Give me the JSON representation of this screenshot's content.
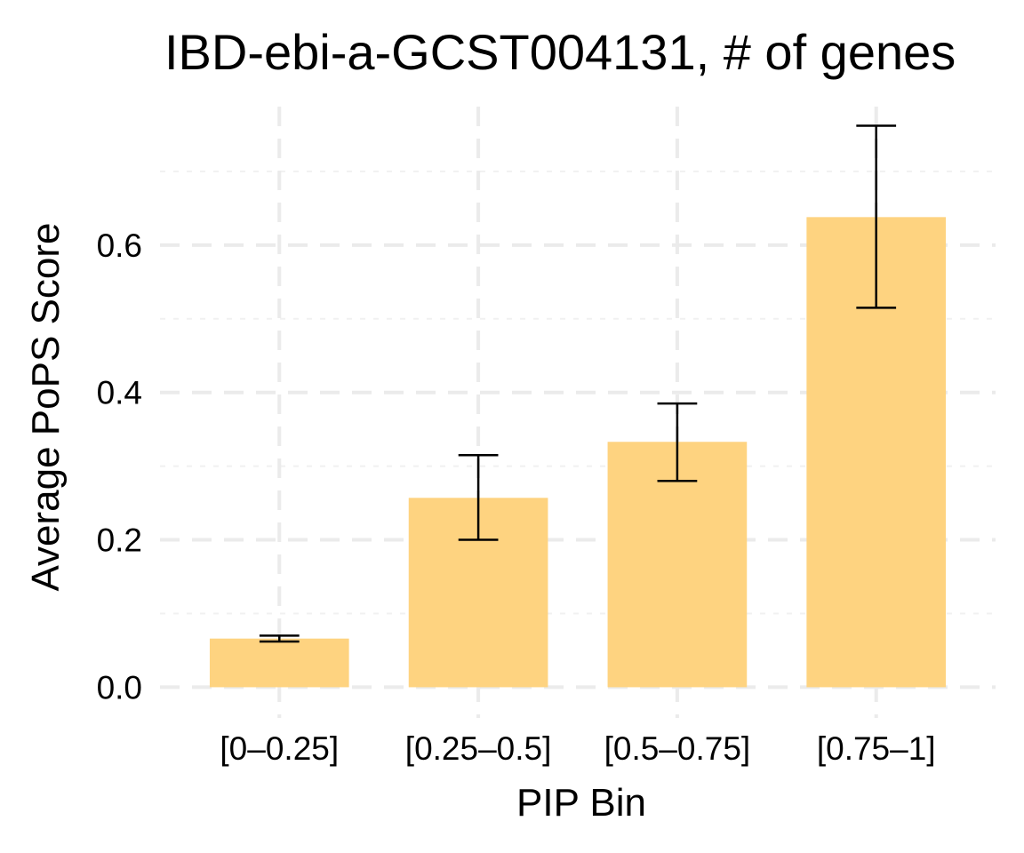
{
  "chart_data": {
    "type": "bar",
    "title": "IBD-ebi-a-GCST004131, # of genes",
    "xlabel": "PIP Bin",
    "ylabel": "Average PoPS Score",
    "categories": [
      "[0–0.25]",
      "[0.25–0.5]",
      "[0.5–0.75]",
      "[0.75–1]"
    ],
    "values": [
      0.066,
      0.257,
      0.333,
      0.638
    ],
    "error_low": [
      0.062,
      0.2,
      0.28,
      0.515
    ],
    "error_high": [
      0.07,
      0.315,
      0.385,
      0.762
    ],
    "ylim": [
      -0.02,
      0.8
    ],
    "yticks": [
      0.0,
      0.2,
      0.4,
      0.6
    ],
    "ytick_labels": [
      "0.0",
      "0.2",
      "0.4",
      "0.6"
    ],
    "grid": true,
    "bar_color": "#fed380",
    "error_bar_color": "#000000"
  }
}
